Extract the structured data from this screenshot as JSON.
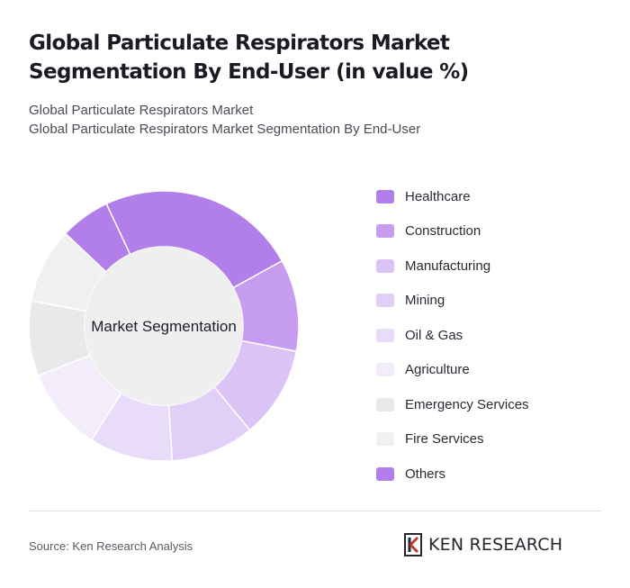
{
  "header": {
    "title": "Global Particulate Respirators Market Segmentation By End-User (in value %)",
    "subtitle_line1": "Global Particulate Respirators Market",
    "subtitle_line2": "Global Particulate Respirators Market Segmentation By End-User"
  },
  "chart_data": {
    "type": "pie",
    "style": "donut",
    "center_label": "Market Segmentation",
    "categories": [
      "Healthcare",
      "Construction",
      "Manufacturing",
      "Mining",
      "Oil & Gas",
      "Agriculture",
      "Emergency Services",
      "Fire Services",
      "Others"
    ],
    "values": [
      24,
      11,
      11,
      10,
      10,
      10,
      9,
      9,
      6
    ],
    "colors": [
      "#b17eea",
      "#c69cf0",
      "#dbc3f6",
      "#e1cff7",
      "#e8dcf9",
      "#f2ecfb",
      "#e9e9e9",
      "#f0f0f0",
      "#b17eea"
    ],
    "legend_position": "right"
  },
  "footer": {
    "source": "Source: Ken Research Analysis",
    "brand": "KEN RESEARCH",
    "logo_icon": "ken-research-logo-icon"
  }
}
